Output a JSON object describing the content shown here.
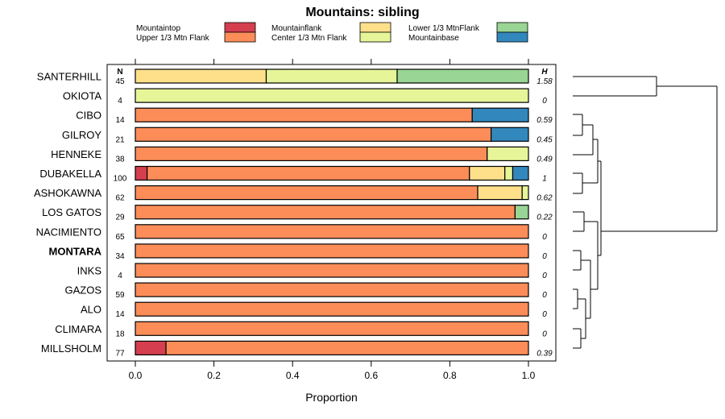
{
  "chart_data": {
    "type": "bar",
    "orientation": "horizontal",
    "stacked": true,
    "title": "Mountains: sibling",
    "xlabel": "Proportion",
    "ylabel": "",
    "xlim": [
      0,
      1
    ],
    "xticks": [
      "0.0",
      "0.2",
      "0.4",
      "0.6",
      "0.8",
      "1.0"
    ],
    "n_header": "N",
    "h_header": "H",
    "highlighted_category": "MONTARA",
    "legend": [
      {
        "name": "Mountaintop",
        "color": "#d53e4f"
      },
      {
        "name": "Upper 1/3 Mtn Flank",
        "color": "#fc8d59"
      },
      {
        "name": "Mountainflank",
        "color": "#fee08b"
      },
      {
        "name": "Center 1/3 Mtn Flank",
        "color": "#e6f598"
      },
      {
        "name": "Lower 1/3 MtnFlank",
        "color": "#99d594"
      },
      {
        "name": "Mountainbase",
        "color": "#3288bd"
      }
    ],
    "categories": [
      "SANTERHILL",
      "OKIOTA",
      "CIBO",
      "GILROY",
      "HENNEKE",
      "DUBAKELLA",
      "ASHOKAWNA",
      "LOS GATOS",
      "NACIMIENTO",
      "MONTARA",
      "INKS",
      "GAZOS",
      "ALO",
      "CLIMARA",
      "MILLSHOLM"
    ],
    "n": [
      "45",
      "4",
      "14",
      "21",
      "38",
      "100",
      "62",
      "29",
      "65",
      "34",
      "4",
      "59",
      "14",
      "18",
      "77"
    ],
    "h": [
      "1.58",
      "0",
      "0.59",
      "0.45",
      "0.49",
      "1",
      "0.62",
      "0.22",
      "0",
      "0",
      "0",
      "0",
      "0",
      "0",
      "0.39"
    ],
    "series": [
      {
        "name": "Mountaintop",
        "values": [
          0,
          0,
          0,
          0,
          0,
          0.03,
          0,
          0,
          0,
          0,
          0,
          0,
          0,
          0,
          0.078
        ]
      },
      {
        "name": "Upper 1/3 Mtn Flank",
        "values": [
          0,
          0,
          0.857,
          0.905,
          0.895,
          0.82,
          0.871,
          0.966,
          1,
          1,
          1,
          1,
          1,
          1,
          0.922
        ]
      },
      {
        "name": "Mountainflank",
        "values": [
          0.333,
          0,
          0,
          0,
          0,
          0.09,
          0.113,
          0,
          0,
          0,
          0,
          0,
          0,
          0,
          0
        ]
      },
      {
        "name": "Center 1/3 Mtn Flank",
        "values": [
          0.333,
          1,
          0,
          0,
          0.105,
          0.02,
          0.016,
          0,
          0,
          0,
          0,
          0,
          0,
          0,
          0
        ]
      },
      {
        "name": "Lower 1/3 MtnFlank",
        "values": [
          0.334,
          0,
          0,
          0,
          0,
          0,
          0,
          0.034,
          0,
          0,
          0,
          0,
          0,
          0,
          0
        ]
      },
      {
        "name": "Mountainbase",
        "values": [
          0,
          0,
          0.143,
          0.095,
          0,
          0.04,
          0,
          0,
          0,
          0,
          0,
          0,
          0,
          0,
          0
        ]
      }
    ]
  }
}
